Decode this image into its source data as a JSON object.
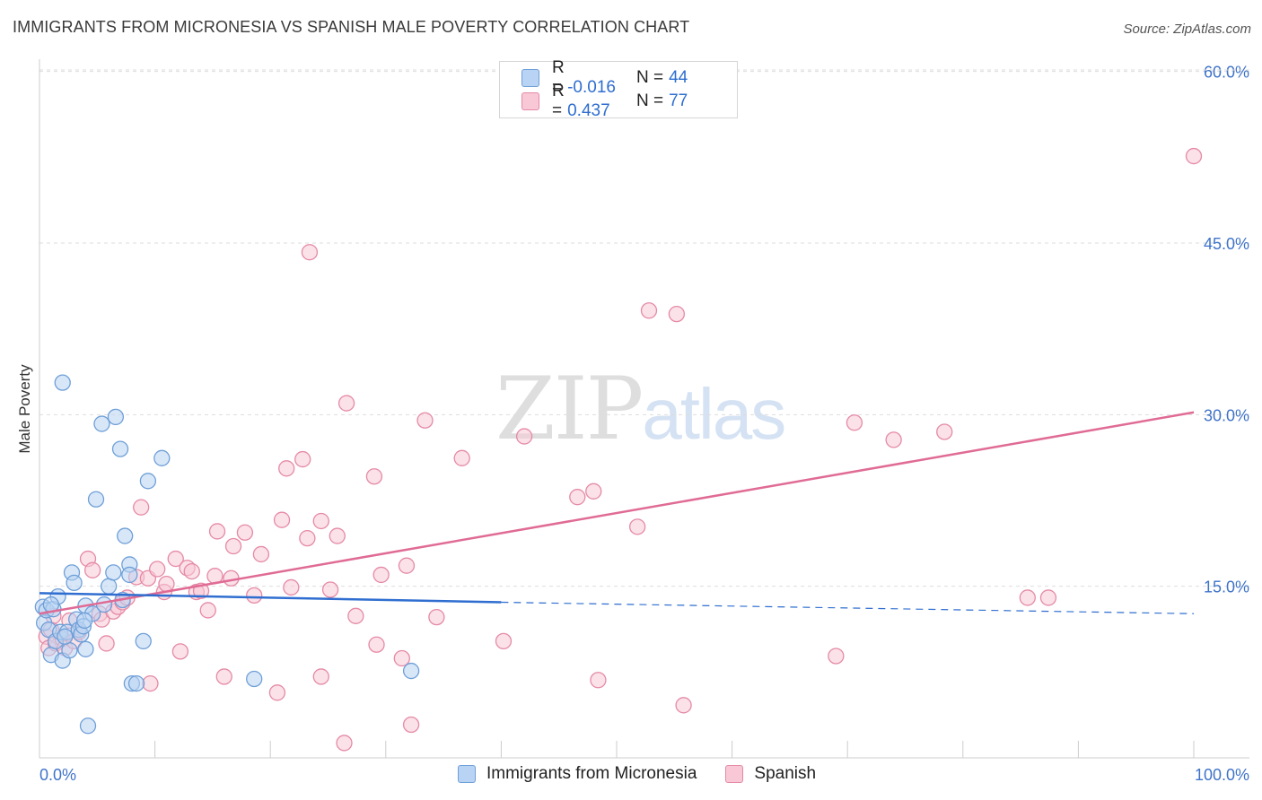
{
  "title": "IMMIGRANTS FROM MICRONESIA VS SPANISH MALE POVERTY CORRELATION CHART",
  "source": "Source: ZipAtlas.com",
  "watermark": {
    "zip": "ZIP",
    "atlas": "atlas"
  },
  "legend": {
    "rows": [
      {
        "r_label": "R =",
        "r_value": "-0.016",
        "n_label": "N =",
        "n_value": "44"
      },
      {
        "r_label": "R =",
        "r_value": "0.437",
        "n_label": "N =",
        "n_value": "77"
      }
    ]
  },
  "bottom_legend": {
    "series1": "Immigrants from Micronesia",
    "series2": "Spanish"
  },
  "colors": {
    "blue": "#6f9fd8",
    "blue_fill": "#b8d3f3",
    "blue_line": "#2f6ed0",
    "pink": "#e58aa6",
    "pink_fill": "#f8c8d6",
    "pink_line": "#e06b95",
    "tick_text": "#3f73c9"
  },
  "chart_data": {
    "type": "scatter",
    "title": "IMMIGRANTS FROM MICRONESIA VS SPANISH MALE POVERTY CORRELATION CHART",
    "xlabel": "",
    "ylabel": "Male Poverty",
    "xlim": [
      0,
      100
    ],
    "ylim": [
      0,
      60
    ],
    "x_tick_labels": [
      "0.0%",
      "100.0%"
    ],
    "y_ticks": [
      15,
      30,
      45,
      60
    ],
    "y_tick_labels": [
      "15.0%",
      "30.0%",
      "45.0%",
      "60.0%"
    ],
    "grid": true,
    "series": [
      {
        "name": "Immigrants from Micronesia",
        "color": "blue",
        "trend": {
          "x0": 0,
          "y0": 14.4,
          "x1": 40,
          "y1": 13.6,
          "dash_to_x": 100,
          "dash_to_y": 12.6
        },
        "points": [
          [
            0.3,
            13.2
          ],
          [
            0.4,
            11.8
          ],
          [
            0.6,
            12.9
          ],
          [
            0.8,
            11.2
          ],
          [
            1.0,
            9.0
          ],
          [
            1.2,
            13.0
          ],
          [
            1.4,
            10.2
          ],
          [
            1.6,
            14.1
          ],
          [
            1.8,
            11.0
          ],
          [
            2.0,
            8.5
          ],
          [
            2.0,
            32.8
          ],
          [
            2.4,
            11.0
          ],
          [
            2.6,
            9.4
          ],
          [
            2.8,
            16.2
          ],
          [
            3.0,
            15.3
          ],
          [
            3.2,
            12.1
          ],
          [
            3.4,
            11.2
          ],
          [
            3.6,
            10.8
          ],
          [
            3.8,
            11.5
          ],
          [
            4.0,
            9.5
          ],
          [
            4.0,
            13.3
          ],
          [
            4.2,
            2.8
          ],
          [
            4.6,
            12.6
          ],
          [
            4.9,
            22.6
          ],
          [
            5.4,
            29.2
          ],
          [
            5.6,
            13.4
          ],
          [
            6.0,
            15.0
          ],
          [
            6.4,
            16.2
          ],
          [
            6.6,
            29.8
          ],
          [
            7.0,
            27.0
          ],
          [
            7.2,
            13.8
          ],
          [
            7.4,
            19.4
          ],
          [
            7.8,
            16.9
          ],
          [
            7.8,
            16.0
          ],
          [
            8.0,
            6.5
          ],
          [
            8.4,
            6.5
          ],
          [
            9.0,
            10.2
          ],
          [
            9.4,
            24.2
          ],
          [
            10.6,
            26.2
          ],
          [
            18.6,
            6.9
          ],
          [
            32.2,
            7.6
          ],
          [
            1.0,
            13.4
          ],
          [
            2.2,
            10.6
          ],
          [
            3.9,
            12.0
          ]
        ]
      },
      {
        "name": "Spanish",
        "color": "pink",
        "trend": {
          "x0": 0,
          "y0": 12.6,
          "x1": 100,
          "y1": 30.2
        },
        "points": [
          [
            0.6,
            10.6
          ],
          [
            0.8,
            9.6
          ],
          [
            1.0,
            11.2
          ],
          [
            1.2,
            12.4
          ],
          [
            1.4,
            10.0
          ],
          [
            2.0,
            10.4
          ],
          [
            2.2,
            9.6
          ],
          [
            2.6,
            12.0
          ],
          [
            3.0,
            10.2
          ],
          [
            3.4,
            11.0
          ],
          [
            4.2,
            17.4
          ],
          [
            4.6,
            16.4
          ],
          [
            5.2,
            12.6
          ],
          [
            5.4,
            12.1
          ],
          [
            5.8,
            10.0
          ],
          [
            6.4,
            12.8
          ],
          [
            6.8,
            13.2
          ],
          [
            7.2,
            13.6
          ],
          [
            7.6,
            14.0
          ],
          [
            8.4,
            15.8
          ],
          [
            8.8,
            21.9
          ],
          [
            9.4,
            15.7
          ],
          [
            9.6,
            6.5
          ],
          [
            10.2,
            16.5
          ],
          [
            10.8,
            14.5
          ],
          [
            11.0,
            15.2
          ],
          [
            11.8,
            17.4
          ],
          [
            12.2,
            9.3
          ],
          [
            12.8,
            16.6
          ],
          [
            13.2,
            16.3
          ],
          [
            13.6,
            14.5
          ],
          [
            14.0,
            14.6
          ],
          [
            14.6,
            12.9
          ],
          [
            15.2,
            15.9
          ],
          [
            15.4,
            19.8
          ],
          [
            16.0,
            7.1
          ],
          [
            16.6,
            15.7
          ],
          [
            16.8,
            18.5
          ],
          [
            17.8,
            19.7
          ],
          [
            18.6,
            14.2
          ],
          [
            19.2,
            17.8
          ],
          [
            20.6,
            5.7
          ],
          [
            21.0,
            20.8
          ],
          [
            21.4,
            25.3
          ],
          [
            21.8,
            14.9
          ],
          [
            22.8,
            26.1
          ],
          [
            23.2,
            19.2
          ],
          [
            23.4,
            44.2
          ],
          [
            24.4,
            20.7
          ],
          [
            24.4,
            7.1
          ],
          [
            25.2,
            14.7
          ],
          [
            25.8,
            19.4
          ],
          [
            26.4,
            1.3
          ],
          [
            26.6,
            31.0
          ],
          [
            27.4,
            12.4
          ],
          [
            29.0,
            24.6
          ],
          [
            29.2,
            9.9
          ],
          [
            29.6,
            16.0
          ],
          [
            31.4,
            8.7
          ],
          [
            31.8,
            16.8
          ],
          [
            32.2,
            2.9
          ],
          [
            33.4,
            29.5
          ],
          [
            34.4,
            12.3
          ],
          [
            36.6,
            26.2
          ],
          [
            40.2,
            10.2
          ],
          [
            42.0,
            28.1
          ],
          [
            46.6,
            22.8
          ],
          [
            48.0,
            23.3
          ],
          [
            48.4,
            6.8
          ],
          [
            51.8,
            20.2
          ],
          [
            52.8,
            39.1
          ],
          [
            55.2,
            38.8
          ],
          [
            55.8,
            4.6
          ],
          [
            69.0,
            8.9
          ],
          [
            70.6,
            29.3
          ],
          [
            74.0,
            27.8
          ],
          [
            78.4,
            28.5
          ]
        ],
        "extra_points": [
          [
            85.6,
            14.0
          ],
          [
            87.4,
            14.0
          ],
          [
            100,
            52.6
          ]
        ]
      }
    ]
  }
}
